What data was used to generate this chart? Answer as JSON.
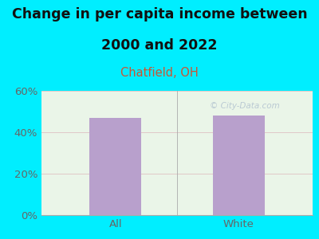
{
  "title_line1": "Change in per capita income between",
  "title_line2": "2000 and 2022",
  "subtitle": "Chatfield, OH",
  "categories": [
    "All",
    "White"
  ],
  "values": [
    47.0,
    48.0
  ],
  "bar_color": "#b8a0cc",
  "title_color": "#111111",
  "subtitle_color": "#cc5533",
  "tick_label_color": "#666666",
  "background_outer": "#00eeff",
  "background_inner": "#eaf5e8",
  "ylim": [
    0,
    60
  ],
  "yticks": [
    0,
    20,
    40,
    60
  ],
  "ytick_labels": [
    "0%",
    "20%",
    "40%",
    "60%"
  ],
  "watermark": "© City-Data.com",
  "title_fontsize": 12.5,
  "subtitle_fontsize": 10.5,
  "tick_fontsize": 9.5,
  "bar_width": 0.42
}
